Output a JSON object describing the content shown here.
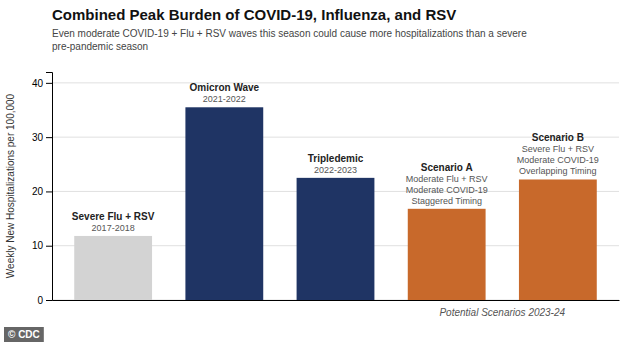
{
  "chart_data": {
    "type": "bar",
    "title": "Combined Peak Burden of COVID-19, Influenza, and RSV",
    "subtitle": "Even moderate COVID-19 + Flu + RSV waves this season could cause more hospitalizations than a severe\npre-pandemic season",
    "ylabel": "Weekly New Hospitalizations per 100,000",
    "xlabel": "Potential Scenarios 2023-24",
    "credit": "© CDC",
    "categories": [
      null,
      null,
      null,
      null,
      null
    ],
    "values": [
      11.8,
      35.5,
      22.5,
      16.8,
      22.2
    ],
    "colors": [
      "#d3d3d3",
      "#1f3464",
      "#1f3464",
      "#c8692b",
      "#c8692b"
    ],
    "annotations": [
      [
        "Severe Flu + RSV",
        "2017-2018"
      ],
      [
        "Omicron Wave",
        "2021-2022"
      ],
      [
        "Tripledemic",
        "2022-2023"
      ],
      [
        "Scenario A",
        "Moderate Flu + RSV",
        "Moderate COVID-19",
        "Staggered Timing"
      ],
      [
        "Scenario B",
        "Severe Flu + RSV",
        "Moderate COVID-19",
        "Overlapping Timing"
      ]
    ],
    "ylim": [
      0,
      42
    ],
    "yticks": [
      0,
      10,
      20,
      30,
      40
    ],
    "grid": true,
    "tick_labels": "y"
  }
}
